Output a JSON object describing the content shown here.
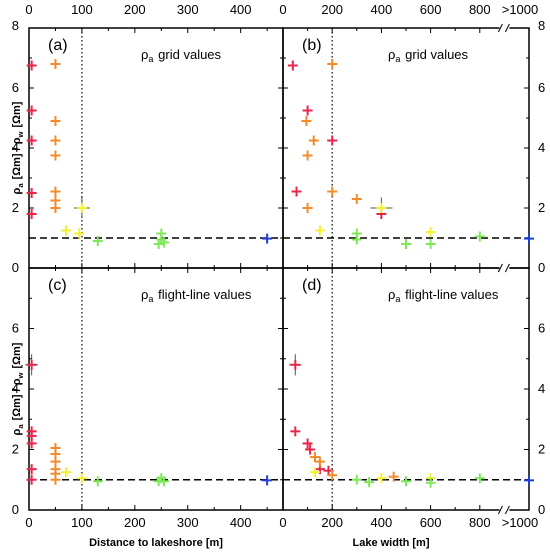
{
  "chart_data": [
    {
      "panel": "(a)",
      "title": "ρa grid values",
      "type": "scatter",
      "x_axis": "Distance to lakeshore [m]",
      "xlim": [
        0,
        480
      ],
      "xticks": [
        0,
        100,
        200,
        300,
        400
      ],
      "top_xticks": [
        0,
        100,
        200,
        300,
        400
      ],
      "ylabel": "ρa [Ωm] / ρw [Ωm]",
      "ylim": [
        0,
        8
      ],
      "yticks": [
        0,
        2,
        4,
        6,
        8
      ],
      "reference_line_y": 1,
      "vertical_line_x": 100,
      "points": [
        {
          "x": 5,
          "y": 6.75,
          "color": "#e8264b"
        },
        {
          "x": 5,
          "y": 5.25,
          "color": "#e8264b"
        },
        {
          "x": 5,
          "y": 4.25,
          "color": "#e8264b"
        },
        {
          "x": 5,
          "y": 2.5,
          "color": "#e8264b"
        },
        {
          "x": 5,
          "y": 1.8,
          "color": "#e8264b"
        },
        {
          "x": 50,
          "y": 6.8,
          "color": "#f28c2b"
        },
        {
          "x": 50,
          "y": 4.9,
          "color": "#f28c2b"
        },
        {
          "x": 50,
          "y": 4.25,
          "color": "#f28c2b"
        },
        {
          "x": 50,
          "y": 3.75,
          "color": "#f28c2b"
        },
        {
          "x": 50,
          "y": 2.55,
          "color": "#f28c2b"
        },
        {
          "x": 50,
          "y": 2.25,
          "color": "#f28c2b"
        },
        {
          "x": 50,
          "y": 2.0,
          "color": "#f28c2b"
        },
        {
          "x": 70,
          "y": 1.25,
          "color": "#f2f230"
        },
        {
          "x": 95,
          "y": 1.15,
          "color": "#f2f230"
        },
        {
          "x": 100,
          "y": 2.0,
          "color": "#f2f230",
          "xerr": 15,
          "yerr": 0.35
        },
        {
          "x": 130,
          "y": 0.9,
          "color": "#7ee85a"
        },
        {
          "x": 245,
          "y": 0.8,
          "color": "#7ee85a"
        },
        {
          "x": 250,
          "y": 1.15,
          "color": "#7ee85a"
        },
        {
          "x": 250,
          "y": 0.95,
          "color": "#7ee85a"
        },
        {
          "x": 255,
          "y": 0.85,
          "color": "#7ee85a"
        },
        {
          "x": 450,
          "y": 0.98,
          "color": "#1f3fd6"
        }
      ]
    },
    {
      "panel": "(b)",
      "title": "ρa grid values",
      "type": "scatter",
      "x_axis": "Lake width [m]",
      "xlim": [
        0,
        1000
      ],
      "xticks": [
        0,
        200,
        400,
        600,
        800
      ],
      "top_xticks": [
        0,
        200,
        400,
        600,
        800
      ],
      "break_label": ">1000",
      "ylim": [
        0,
        8
      ],
      "yticks": [
        0,
        2,
        4,
        6,
        8
      ],
      "reference_line_y": 1,
      "vertical_line_x": 200,
      "points": [
        {
          "x": 40,
          "y": 6.75,
          "color": "#e8264b"
        },
        {
          "x": 100,
          "y": 5.25,
          "color": "#e8264b"
        },
        {
          "x": 55,
          "y": 2.55,
          "color": "#e8264b"
        },
        {
          "x": 200,
          "y": 4.25,
          "color": "#e8264b"
        },
        {
          "x": 400,
          "y": 1.8,
          "color": "#e8264b"
        },
        {
          "x": 200,
          "y": 6.8,
          "color": "#f28c2b"
        },
        {
          "x": 95,
          "y": 4.9,
          "color": "#f28c2b"
        },
        {
          "x": 125,
          "y": 4.25,
          "color": "#f28c2b"
        },
        {
          "x": 100,
          "y": 3.75,
          "color": "#f28c2b"
        },
        {
          "x": 200,
          "y": 2.55,
          "color": "#f28c2b"
        },
        {
          "x": 300,
          "y": 2.3,
          "color": "#f28c2b"
        },
        {
          "x": 100,
          "y": 2.0,
          "color": "#f28c2b"
        },
        {
          "x": 150,
          "y": 1.25,
          "color": "#f2f230"
        },
        {
          "x": 400,
          "y": 2.0,
          "color": "#f2f230",
          "xerr": 45,
          "yerr": 0.35
        },
        {
          "x": 600,
          "y": 1.2,
          "color": "#f2f230"
        },
        {
          "x": 300,
          "y": 1.15,
          "color": "#7ee85a"
        },
        {
          "x": 300,
          "y": 0.95,
          "color": "#7ee85a"
        },
        {
          "x": 500,
          "y": 0.8,
          "color": "#7ee85a"
        },
        {
          "x": 600,
          "y": 0.8,
          "color": "#7ee85a"
        },
        {
          "x": 800,
          "y": 1.05,
          "color": "#7ee85a"
        },
        {
          "x": 1000,
          "y": 0.98,
          "color": "#1f3fd6"
        }
      ]
    },
    {
      "panel": "(c)",
      "title": "ρa flight-line values",
      "type": "scatter",
      "x_axis": "Distance to lakeshore [m]",
      "xlabel": "Distance to lakeshore [m]",
      "xlim": [
        0,
        480
      ],
      "xticks": [
        0,
        100,
        200,
        300,
        400
      ],
      "ylabel": "ρa [Ωm] / ρw [Ωm]",
      "ylim": [
        0,
        8
      ],
      "yticks": [
        0,
        2,
        4,
        6,
        8
      ],
      "reference_line_y": 1,
      "vertical_line_x": 100,
      "points": [
        {
          "x": 5,
          "y": 4.8,
          "color": "#e8264b",
          "xerr": 12,
          "yerr": 0.35
        },
        {
          "x": 5,
          "y": 2.6,
          "color": "#e8264b"
        },
        {
          "x": 5,
          "y": 2.45,
          "color": "#e8264b"
        },
        {
          "x": 5,
          "y": 2.2,
          "color": "#e8264b"
        },
        {
          "x": 5,
          "y": 1.35,
          "color": "#e8264b"
        },
        {
          "x": 5,
          "y": 1.0,
          "color": "#e8264b"
        },
        {
          "x": 50,
          "y": 2.05,
          "color": "#f28c2b"
        },
        {
          "x": 50,
          "y": 1.85,
          "color": "#f28c2b"
        },
        {
          "x": 50,
          "y": 1.6,
          "color": "#f28c2b"
        },
        {
          "x": 50,
          "y": 1.35,
          "color": "#f28c2b"
        },
        {
          "x": 50,
          "y": 1.2,
          "color": "#f28c2b"
        },
        {
          "x": 50,
          "y": 1.0,
          "color": "#f28c2b"
        },
        {
          "x": 70,
          "y": 1.25,
          "color": "#f2f230"
        },
        {
          "x": 100,
          "y": 1.05,
          "color": "#f2f230"
        },
        {
          "x": 130,
          "y": 0.95,
          "color": "#7ee85a"
        },
        {
          "x": 245,
          "y": 0.95,
          "color": "#7ee85a"
        },
        {
          "x": 250,
          "y": 1.05,
          "color": "#7ee85a"
        },
        {
          "x": 255,
          "y": 0.95,
          "color": "#7ee85a"
        },
        {
          "x": 450,
          "y": 0.98,
          "color": "#1f3fd6"
        }
      ]
    },
    {
      "panel": "(d)",
      "title": "ρa flight-line values",
      "type": "scatter",
      "x_axis": "Lake width [m]",
      "xlabel": "Lake width [m]",
      "xlim": [
        0,
        1000
      ],
      "xticks": [
        0,
        200,
        400,
        600,
        800
      ],
      "break_label": ">1000",
      "ylim": [
        0,
        8
      ],
      "yticks": [
        0,
        2,
        4,
        6,
        8
      ],
      "reference_line_y": 1,
      "vertical_line_x": 200,
      "points": [
        {
          "x": 50,
          "y": 4.8,
          "color": "#e8264b",
          "xerr": 25,
          "yerr": 0.35
        },
        {
          "x": 50,
          "y": 2.6,
          "color": "#e8264b"
        },
        {
          "x": 100,
          "y": 2.2,
          "color": "#e8264b"
        },
        {
          "x": 110,
          "y": 2.0,
          "color": "#e8264b"
        },
        {
          "x": 150,
          "y": 1.35,
          "color": "#e8264b"
        },
        {
          "x": 185,
          "y": 1.3,
          "color": "#e8264b"
        },
        {
          "x": 130,
          "y": 1.75,
          "color": "#f28c2b"
        },
        {
          "x": 150,
          "y": 1.6,
          "color": "#f28c2b"
        },
        {
          "x": 200,
          "y": 1.15,
          "color": "#f28c2b"
        },
        {
          "x": 450,
          "y": 1.1,
          "color": "#f28c2b"
        },
        {
          "x": 130,
          "y": 1.25,
          "color": "#f2f230"
        },
        {
          "x": 400,
          "y": 1.05,
          "color": "#f2f230"
        },
        {
          "x": 600,
          "y": 1.05,
          "color": "#f2f230"
        },
        {
          "x": 300,
          "y": 1.0,
          "color": "#7ee85a"
        },
        {
          "x": 350,
          "y": 0.92,
          "color": "#7ee85a"
        },
        {
          "x": 500,
          "y": 0.95,
          "color": "#7ee85a"
        },
        {
          "x": 600,
          "y": 0.9,
          "color": "#7ee85a"
        },
        {
          "x": 800,
          "y": 1.05,
          "color": "#7ee85a"
        },
        {
          "x": 1000,
          "y": 0.98,
          "color": "#1f3fd6"
        }
      ]
    }
  ]
}
